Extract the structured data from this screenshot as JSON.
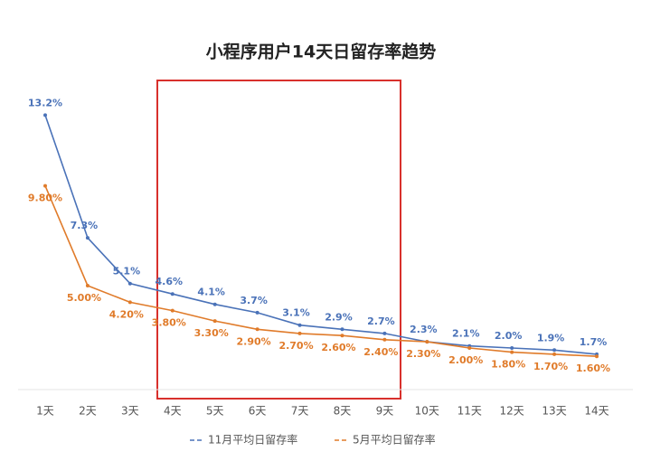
{
  "chart_data": {
    "type": "line",
    "title": "小程序用户14天日留存率趋势",
    "categories": [
      "1天",
      "2天",
      "3天",
      "4天",
      "5天",
      "6天",
      "7天",
      "8天",
      "9天",
      "10天",
      "11天",
      "12天",
      "13天",
      "14天"
    ],
    "series": [
      {
        "name": "11月平均日留存率",
        "color": "#4a72b8",
        "values": [
          13.2,
          7.3,
          5.1,
          4.6,
          4.1,
          3.7,
          3.1,
          2.9,
          2.7,
          2.3,
          2.1,
          2.0,
          1.9,
          1.7
        ],
        "value_labels": [
          "13.2%",
          "7.3%",
          "5.1%",
          "4.6%",
          "4.1%",
          "3.7%",
          "3.1%",
          "2.9%",
          "2.7%",
          "2.3%",
          "2.1%",
          "2.0%",
          "1.9%",
          "1.7%"
        ]
      },
      {
        "name": "5月平均日留存率",
        "color": "#e07b2a",
        "values": [
          9.8,
          5.0,
          4.2,
          3.8,
          3.3,
          2.9,
          2.7,
          2.6,
          2.4,
          2.3,
          2.0,
          1.8,
          1.7,
          1.6
        ],
        "value_labels": [
          "9.80%",
          "5.00%",
          "4.20%",
          "3.80%",
          "3.30%",
          "2.90%",
          "2.70%",
          "2.60%",
          "2.40%",
          "2.30%",
          "2.00%",
          "1.80%",
          "1.70%",
          "1.60%"
        ]
      }
    ],
    "ylim": [
      0,
      14
    ]
  }
}
